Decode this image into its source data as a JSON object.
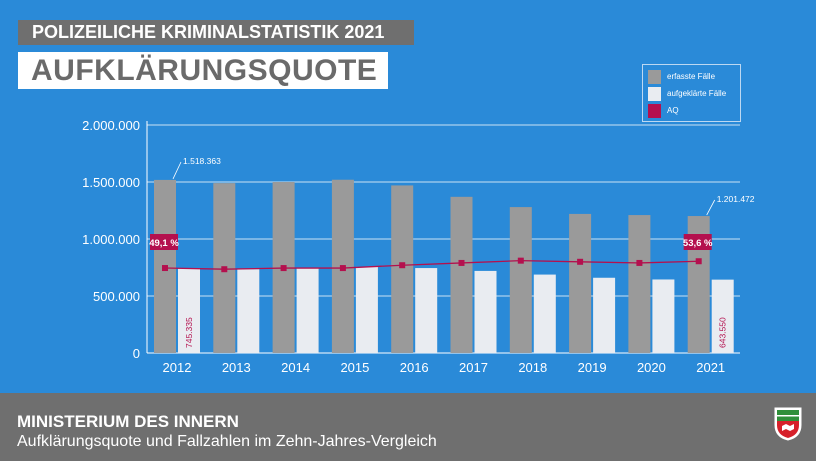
{
  "header": {
    "supertitle": "POLIZEILICHE KRIMINALSTATISTIK 2021",
    "title": "AUFKLÄRUNGSQUOTE"
  },
  "footer": {
    "title": "MINISTERIUM DES INNERN",
    "subtitle": "Aufklärungsquote und Fallzahlen im Zehn-Jahres-Vergleich"
  },
  "colors": {
    "background": "#2a8ad8",
    "recorded": "#9a9a9a",
    "solved": "#e9ecf1",
    "rate": "#b4104e",
    "panel": "#6f6f6f"
  },
  "chart_data": {
    "type": "bar",
    "categories": [
      "2012",
      "2013",
      "2014",
      "2015",
      "2016",
      "2017",
      "2018",
      "2019",
      "2020",
      "2021"
    ],
    "series": [
      {
        "name": "erfasste Fälle",
        "values": [
          1518363,
          1490000,
          1500000,
          1520000,
          1470000,
          1370000,
          1280000,
          1220000,
          1210000,
          1201472
        ]
      },
      {
        "name": "aufgeklärte Fälle",
        "values": [
          745335,
          735000,
          745000,
          755000,
          745000,
          720000,
          688000,
          660000,
          645000,
          643550
        ]
      }
    ],
    "line_series": {
      "name": "AQ",
      "values": [
        49.1,
        49.3,
        49.7,
        49.6,
        50.7,
        52.6,
        53.7,
        54.1,
        53.3,
        53.6
      ],
      "plotted_as": [
        745335,
        735000,
        745000,
        745000,
        770000,
        790000,
        810000,
        800000,
        790000,
        805000
      ]
    },
    "yticks": [
      "0",
      "500.000",
      "1.000.000",
      "1.500.000",
      "2.000.000"
    ],
    "ylim": [
      0,
      2000000
    ],
    "grid": true,
    "legend_position": "top-right",
    "annotations": {
      "first_recorded": "1.518.363",
      "last_recorded": "1.201.472",
      "first_solved": "745.335",
      "last_solved": "643.550",
      "first_rate": "49,1 %",
      "last_rate": "53,6 %"
    }
  }
}
